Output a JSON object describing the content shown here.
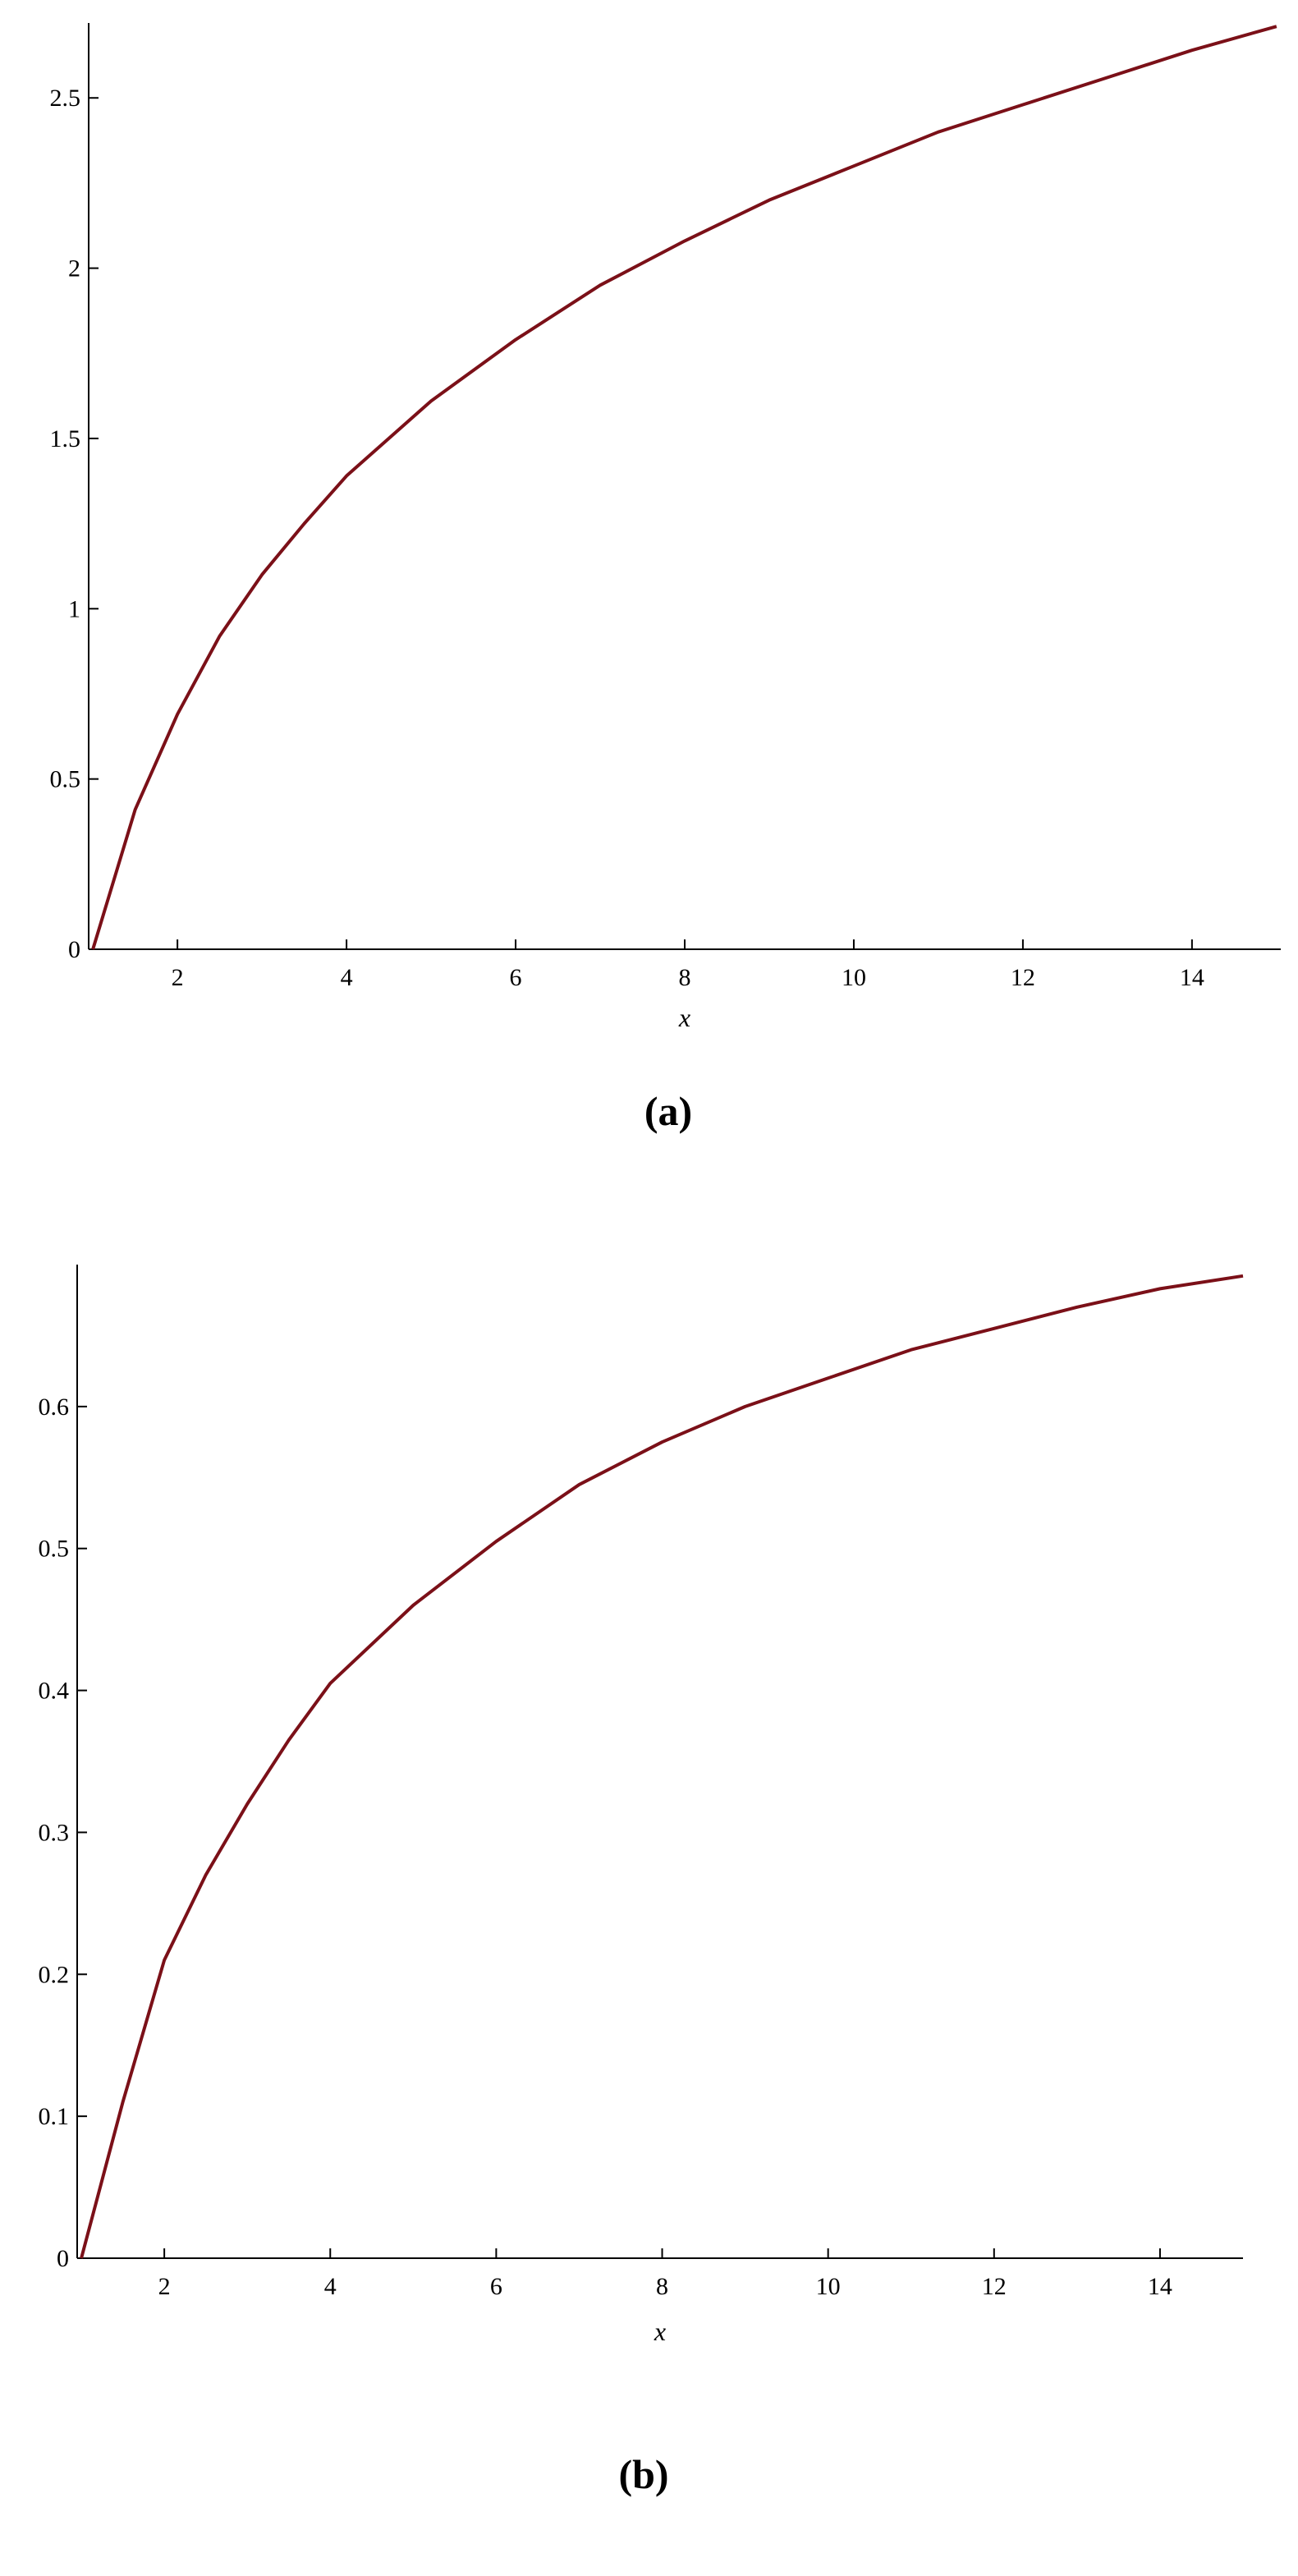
{
  "chart_data": [
    {
      "type": "line",
      "caption": "(a)",
      "x_label": "x",
      "xlim": [
        0.95,
        15.05
      ],
      "ylim": [
        0,
        2.72
      ],
      "xticks": [
        2,
        4,
        6,
        8,
        10,
        12,
        14
      ],
      "yticks": [
        0,
        0.5,
        1,
        1.5,
        2,
        2.5
      ],
      "series": [
        {
          "color": "#7b1018",
          "x": [
            1,
            1.5,
            2,
            2.5,
            3,
            3.5,
            4,
            5,
            6,
            7,
            8,
            9,
            10,
            11,
            12,
            13,
            14,
            15
          ],
          "values": [
            0,
            0.41,
            0.69,
            0.92,
            1.1,
            1.25,
            1.39,
            1.61,
            1.79,
            1.95,
            2.08,
            2.2,
            2.3,
            2.4,
            2.48,
            2.56,
            2.64,
            2.71
          ]
        }
      ]
    },
    {
      "type": "line",
      "caption": "(b)",
      "x_label": "x",
      "xlim": [
        0.95,
        15
      ],
      "ylim": [
        0,
        0.7
      ],
      "xticks": [
        2,
        4,
        6,
        8,
        10,
        12,
        14
      ],
      "yticks": [
        0,
        0.1,
        0.2,
        0.3,
        0.4,
        0.5,
        0.6
      ],
      "series": [
        {
          "color": "#7b1018",
          "x": [
            1,
            1.5,
            2,
            2.5,
            3,
            3.5,
            4,
            5,
            6,
            7,
            8,
            9,
            10,
            11,
            12,
            13,
            14,
            15
          ],
          "values": [
            0,
            0.11,
            0.21,
            0.27,
            0.32,
            0.365,
            0.405,
            0.46,
            0.505,
            0.545,
            0.575,
            0.6,
            0.62,
            0.64,
            0.655,
            0.67,
            0.683,
            0.692
          ]
        }
      ]
    }
  ]
}
